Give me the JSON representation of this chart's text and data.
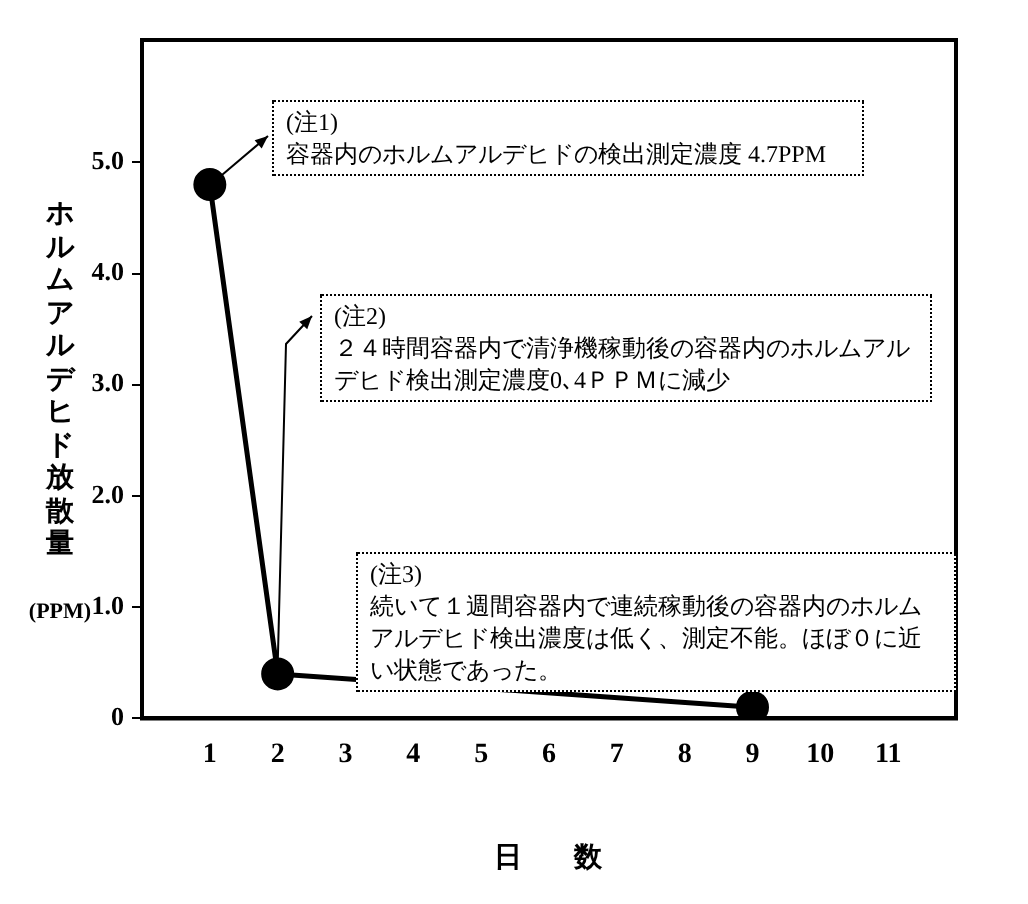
{
  "chart_data": {
    "type": "line",
    "xlabel": "日　数",
    "ylabel": "ホルムアルデヒド放散量 (PPM)",
    "x": [
      1,
      2,
      9
    ],
    "series": [
      {
        "color": "#000000",
        "values": [
          4.8,
          0.4,
          0.1
        ]
      }
    ],
    "xlim": [
      0,
      12
    ],
    "xticks": [
      1,
      2,
      3,
      4,
      5,
      6,
      7,
      8,
      9,
      10,
      11
    ],
    "ylim": [
      0,
      6.1
    ],
    "yticks": [
      0,
      {
        "value": 1,
        "label": "1.0"
      },
      {
        "value": 2,
        "label": "2.0"
      },
      {
        "value": 3,
        "label": "3.0"
      },
      {
        "value": 4,
        "label": "4.0"
      },
      {
        "value": 5,
        "label": "5.0"
      }
    ],
    "grid": false,
    "legend": false,
    "marker": "circle",
    "line_style": "solid",
    "annotations": [
      {
        "text": "(注1)\n容器内のホルムアルデヒドの検出測定濃度 4.7PPM",
        "x": 1,
        "y": 4.8
      },
      {
        "text": "(注2)\n２４時間容器内で清浄機稼動後の容器内のホルムアルデヒド検出測定濃度0､4ＰＰＭに減少",
        "x": 2,
        "y": 0.4
      },
      {
        "text": "(注3)\n続いて１週間容器内で連続稼動後の容器内のホルムアルデヒド検出濃度は低く、測定不能。ほぼ０に近い状態であった。",
        "x": 9,
        "y": 0.1
      }
    ]
  }
}
